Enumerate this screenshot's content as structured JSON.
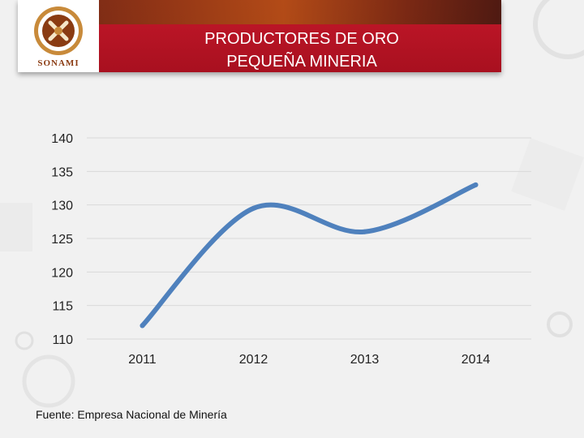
{
  "header": {
    "logo_text": "SONAMI",
    "title_line1": "PRODUCTORES DE ORO",
    "title_line2": "PEQUEÑA MINERIA"
  },
  "footer": {
    "source": "Fuente: Empresa Nacional de Minería"
  },
  "colors": {
    "banner": "#b5121f",
    "line": "#4f81bd",
    "grid": "#d9d9d9"
  },
  "chart_data": {
    "type": "line",
    "categories": [
      "2011",
      "2012",
      "2013",
      "2014"
    ],
    "series": [
      {
        "values": [
          112,
          129.5,
          126,
          133
        ]
      }
    ],
    "title": "",
    "xlabel": "",
    "ylabel": "",
    "ylim": [
      110,
      140
    ],
    "yticks": [
      110,
      115,
      120,
      125,
      130,
      135,
      140
    ],
    "grid": true,
    "smooth": true
  }
}
